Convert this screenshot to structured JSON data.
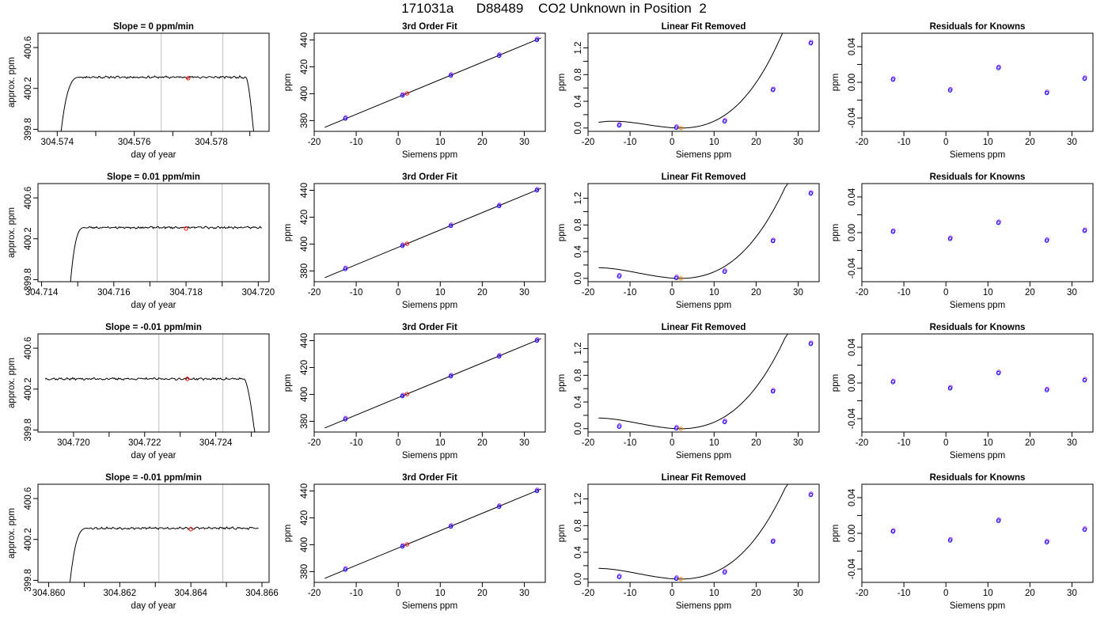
{
  "page_title": "171031a      D88489    CO2 Unknown in Position  2",
  "colors": {
    "trace": "#000000",
    "reference_line": "#bfbfbf",
    "unknown": "#ff0000",
    "known": "#0000ff",
    "known_alt": "#a020f0",
    "unknown_fit": "#ff8c00"
  },
  "chart_data": [
    {
      "row": 1,
      "col": 1,
      "type": "line",
      "title": "Slope =  0  ppm/min",
      "xlabel": "day of year",
      "ylabel": "approx. ppm",
      "xlim": [
        304.5735,
        304.5795
      ],
      "ylim": [
        399.78,
        400.74
      ],
      "xticks": [
        304.574,
        304.575,
        304.576,
        304.577,
        304.578,
        304.579
      ],
      "xtick_labels": [
        "304.574",
        "",
        "304.576",
        "",
        "304.578",
        ""
      ],
      "yticks": [
        399.8,
        400.2,
        400.6
      ],
      "ytick_labels": [
        "399.8",
        "400.2",
        "400.6"
      ],
      "vlines": [
        304.5767,
        304.5783
      ],
      "unknown_point": [
        304.5774,
        400.3
      ],
      "trace": {
        "start": 304.5741,
        "rise_end": 304.5746,
        "plateau_end": 304.5789,
        "end": 304.5791,
        "low": 399.78,
        "level": 400.31,
        "noise": 0.008,
        "seed": 11
      }
    },
    {
      "row": 1,
      "col": 2,
      "type": "scatter",
      "title": "3rd Order Fit",
      "xlabel": "Siemens ppm",
      "ylabel": "ppm",
      "xlim": [
        -20,
        35
      ],
      "ylim": [
        372,
        445
      ],
      "xticks": [
        -20,
        -10,
        0,
        10,
        20,
        30
      ],
      "xtick_labels": [
        "-20",
        "-10",
        "0",
        "10",
        "20",
        "30"
      ],
      "yticks": [
        380,
        400,
        420,
        440
      ],
      "ytick_labels": [
        "380",
        "400",
        "420",
        "440"
      ],
      "curve": {
        "type": "line",
        "x0": -17.5,
        "x1": 34,
        "y0": 375,
        "y1": 441.5
      },
      "known_x": [
        -12.6,
        1,
        12.5,
        24,
        33
      ],
      "known_y": [
        381.5,
        398.7,
        413.5,
        428.3,
        440
      ],
      "unknown_x": 2.1,
      "unknown_y": 400.2
    },
    {
      "row": 1,
      "col": 3,
      "type": "scatter",
      "title": "Linear Fit Removed",
      "xlabel": "Siemens ppm",
      "ylabel": "ppm",
      "xlim": [
        -20,
        35
      ],
      "ylim": [
        -0.05,
        1.42
      ],
      "xticks": [
        -20,
        -10,
        0,
        10,
        20,
        30
      ],
      "xtick_labels": [
        "-20",
        "-10",
        "0",
        "10",
        "20",
        "30"
      ],
      "yticks": [
        0,
        0.2,
        0.4,
        0.6,
        0.8,
        1.0,
        1.2
      ],
      "ytick_labels": [
        "0.0",
        "",
        "0.4",
        "",
        "0.8",
        "",
        "1.2"
      ],
      "curve": {
        "type": "poly",
        "x0": -17.5,
        "x1": 34,
        "x_vertex": 2,
        "y_vertex": 0.0,
        "a": 5e-05,
        "b": 0.0012
      },
      "known_x": [
        -12.6,
        1,
        12.5,
        24,
        33
      ],
      "known_y": [
        0.04,
        0.005,
        0.1,
        0.57,
        1.27
      ],
      "unknown_x": 2.1,
      "unknown_y": 0.0
    },
    {
      "row": 1,
      "col": 4,
      "type": "scatter",
      "title": "Residuals for Knowns",
      "xlabel": "Siemens ppm",
      "ylabel": "ppm",
      "xlim": [
        -20,
        35
      ],
      "ylim": [
        -0.055,
        0.055
      ],
      "xticks": [
        -20,
        -10,
        0,
        10,
        20,
        30
      ],
      "xtick_labels": [
        "-20",
        "-10",
        "0",
        "10",
        "20",
        "30"
      ],
      "yticks": [
        -0.04,
        -0.02,
        0,
        0.02,
        0.04
      ],
      "ytick_labels": [
        "-0.04",
        "",
        "0.00",
        "",
        "0.04"
      ],
      "known_x": [
        -12.6,
        1,
        12.5,
        24,
        33
      ],
      "known_y": [
        0.003,
        -0.009,
        0.016,
        -0.012,
        0.004
      ]
    },
    {
      "row": 2,
      "col": 1,
      "type": "line",
      "title": "Slope =  0.01  ppm/min",
      "xlabel": "day of year",
      "ylabel": "approx. ppm",
      "xlim": [
        304.7139,
        304.7203
      ],
      "ylim": [
        399.78,
        400.74
      ],
      "xticks": [
        304.714,
        304.715,
        304.716,
        304.717,
        304.718,
        304.719,
        304.72
      ],
      "xtick_labels": [
        "304.714",
        "",
        "304.716",
        "",
        "304.718",
        "",
        "304.720"
      ],
      "yticks": [
        399.8,
        400.2,
        400.6
      ],
      "ytick_labels": [
        "399.8",
        "400.2",
        "400.6"
      ],
      "vlines": [
        304.7172,
        304.719
      ],
      "unknown_point": [
        304.718,
        400.3
      ],
      "trace": {
        "start": 304.7148,
        "rise_end": 304.7152,
        "plateau_end": 304.7201,
        "end": 304.7201,
        "low": 399.78,
        "level": 400.31,
        "noise": 0.008,
        "seed": 23
      }
    },
    {
      "row": 2,
      "col": 2,
      "type": "scatter",
      "title": "3rd Order Fit",
      "xlabel": "Siemens ppm",
      "ylabel": "ppm",
      "xlim": [
        -20,
        35
      ],
      "ylim": [
        372,
        445
      ],
      "xticks": [
        -20,
        -10,
        0,
        10,
        20,
        30
      ],
      "xtick_labels": [
        "-20",
        "-10",
        "0",
        "10",
        "20",
        "30"
      ],
      "yticks": [
        380,
        400,
        420,
        440
      ],
      "ytick_labels": [
        "380",
        "400",
        "420",
        "440"
      ],
      "curve": {
        "type": "line",
        "x0": -17.5,
        "x1": 34,
        "y0": 375,
        "y1": 441.5
      },
      "known_x": [
        -12.6,
        1,
        12.5,
        24,
        33
      ],
      "known_y": [
        381.5,
        398.7,
        413.5,
        428.3,
        440
      ],
      "unknown_x": 2.1,
      "unknown_y": 400.2
    },
    {
      "row": 2,
      "col": 3,
      "type": "scatter",
      "title": "Linear Fit Removed",
      "xlabel": "Siemens ppm",
      "ylabel": "ppm",
      "xlim": [
        -20,
        35
      ],
      "ylim": [
        -0.05,
        1.42
      ],
      "xticks": [
        -20,
        -10,
        0,
        10,
        20,
        30
      ],
      "xtick_labels": [
        "-20",
        "-10",
        "0",
        "10",
        "20",
        "30"
      ],
      "yticks": [
        0,
        0.2,
        0.4,
        0.6,
        0.8,
        1.0,
        1.2
      ],
      "ytick_labels": [
        "0.0",
        "",
        "0.4",
        "",
        "0.8",
        "",
        "1.2"
      ],
      "curve": {
        "type": "poly",
        "x0": -17.5,
        "x1": 34,
        "x_vertex": 2,
        "y_vertex": 0.0,
        "a": 4e-05,
        "b": 0.0012
      },
      "known_x": [
        -12.6,
        1,
        12.5,
        24,
        33
      ],
      "known_y": [
        0.03,
        0.005,
        0.1,
        0.56,
        1.27
      ],
      "unknown_x": 2.1,
      "unknown_y": 0.0
    },
    {
      "row": 2,
      "col": 4,
      "type": "scatter",
      "title": "Residuals for Knowns",
      "xlabel": "Siemens ppm",
      "ylabel": "ppm",
      "xlim": [
        -20,
        35
      ],
      "ylim": [
        -0.055,
        0.055
      ],
      "xticks": [
        -20,
        -10,
        0,
        10,
        20,
        30
      ],
      "xtick_labels": [
        "-20",
        "-10",
        "0",
        "10",
        "20",
        "30"
      ],
      "yticks": [
        -0.04,
        -0.02,
        0,
        0.02,
        0.04
      ],
      "ytick_labels": [
        "-0.04",
        "",
        "0.00",
        "",
        "0.04"
      ],
      "known_x": [
        -12.6,
        1,
        12.5,
        24,
        33
      ],
      "known_y": [
        0.001,
        -0.007,
        0.011,
        -0.009,
        0.002
      ]
    },
    {
      "row": 3,
      "col": 1,
      "type": "line",
      "title": "Slope =  -0.01  ppm/min",
      "xlabel": "day of year",
      "ylabel": "approx. ppm",
      "xlim": [
        304.719,
        304.7255
      ],
      "ylim": [
        399.78,
        400.74
      ],
      "xticks": [
        304.72,
        304.721,
        304.722,
        304.723,
        304.724,
        304.725
      ],
      "xtick_labels": [
        "304.720",
        "",
        "304.722",
        "",
        "304.724",
        ""
      ],
      "yticks": [
        399.8,
        400.2,
        400.6
      ],
      "ytick_labels": [
        "399.8",
        "400.2",
        "400.6"
      ],
      "vlines": [
        304.7224,
        304.7242
      ],
      "unknown_point": [
        304.7232,
        400.3
      ],
      "trace": {
        "start": 304.7192,
        "rise_end": 304.7192,
        "plateau_end": 304.7248,
        "end": 304.7251,
        "low": 399.78,
        "level": 400.3,
        "noise": 0.008,
        "seed": 37
      }
    },
    {
      "row": 3,
      "col": 2,
      "type": "scatter",
      "title": "3rd Order Fit",
      "xlabel": "Siemens ppm",
      "ylabel": "ppm",
      "xlim": [
        -20,
        35
      ],
      "ylim": [
        372,
        445
      ],
      "xticks": [
        -20,
        -10,
        0,
        10,
        20,
        30
      ],
      "xtick_labels": [
        "-20",
        "-10",
        "0",
        "10",
        "20",
        "30"
      ],
      "yticks": [
        380,
        400,
        420,
        440
      ],
      "ytick_labels": [
        "380",
        "400",
        "420",
        "440"
      ],
      "curve": {
        "type": "line",
        "x0": -17.5,
        "x1": 34,
        "y0": 375,
        "y1": 441.5
      },
      "known_x": [
        -12.6,
        1,
        12.5,
        24,
        33
      ],
      "known_y": [
        381.5,
        398.7,
        413.5,
        428.3,
        440
      ],
      "unknown_x": 2.1,
      "unknown_y": 400.2
    },
    {
      "row": 3,
      "col": 3,
      "type": "scatter",
      "title": "Linear Fit Removed",
      "xlabel": "Siemens ppm",
      "ylabel": "ppm",
      "xlim": [
        -20,
        35
      ],
      "ylim": [
        -0.05,
        1.42
      ],
      "xticks": [
        -20,
        -10,
        0,
        10,
        20,
        30
      ],
      "xtick_labels": [
        "-20",
        "-10",
        "0",
        "10",
        "20",
        "30"
      ],
      "yticks": [
        0,
        0.2,
        0.4,
        0.6,
        0.8,
        1.0,
        1.2
      ],
      "ytick_labels": [
        "0.0",
        "",
        "0.4",
        "",
        "0.8",
        "",
        "1.2"
      ],
      "curve": {
        "type": "poly",
        "x0": -17.5,
        "x1": 34,
        "x_vertex": 2,
        "y_vertex": 0.0,
        "a": 4e-05,
        "b": 0.0012
      },
      "known_x": [
        -12.6,
        1,
        12.5,
        24,
        33
      ],
      "known_y": [
        0.03,
        0.005,
        0.1,
        0.56,
        1.27
      ],
      "unknown_x": 2.1,
      "unknown_y": 0.0
    },
    {
      "row": 3,
      "col": 4,
      "type": "scatter",
      "title": "Residuals for Knowns",
      "xlabel": "Siemens ppm",
      "ylabel": "ppm",
      "xlim": [
        -20,
        35
      ],
      "ylim": [
        -0.055,
        0.055
      ],
      "xticks": [
        -20,
        -10,
        0,
        10,
        20,
        30
      ],
      "xtick_labels": [
        "-20",
        "-10",
        "0",
        "10",
        "20",
        "30"
      ],
      "yticks": [
        -0.04,
        -0.02,
        0,
        0.02,
        0.04
      ],
      "ytick_labels": [
        "-0.04",
        "",
        "0.00",
        "",
        "0.04"
      ],
      "known_x": [
        -12.6,
        1,
        12.5,
        24,
        33
      ],
      "known_y": [
        0.001,
        -0.006,
        0.011,
        -0.008,
        0.003
      ]
    },
    {
      "row": 4,
      "col": 1,
      "type": "line",
      "title": "Slope =  -0.01  ppm/min",
      "xlabel": "day of year",
      "ylabel": "approx. ppm",
      "xlim": [
        304.8597,
        304.8662
      ],
      "ylim": [
        399.78,
        400.74
      ],
      "xticks": [
        304.86,
        304.861,
        304.862,
        304.863,
        304.864,
        304.865,
        304.866
      ],
      "xtick_labels": [
        "304.860",
        "",
        "304.862",
        "",
        "304.864",
        "",
        "304.866"
      ],
      "yticks": [
        399.8,
        400.2,
        400.6
      ],
      "ytick_labels": [
        "399.8",
        "400.2",
        "400.6"
      ],
      "vlines": [
        304.8631,
        304.8649
      ],
      "unknown_point": [
        304.864,
        400.3
      ],
      "trace": {
        "start": 304.8606,
        "rise_end": 304.8611,
        "plateau_end": 304.8659,
        "end": 304.8659,
        "low": 399.78,
        "level": 400.31,
        "noise": 0.008,
        "seed": 53
      }
    },
    {
      "row": 4,
      "col": 2,
      "type": "scatter",
      "title": "3rd Order Fit",
      "xlabel": "Siemens ppm",
      "ylabel": "ppm",
      "xlim": [
        -20,
        35
      ],
      "ylim": [
        372,
        445
      ],
      "xticks": [
        -20,
        -10,
        0,
        10,
        20,
        30
      ],
      "xtick_labels": [
        "-20",
        "-10",
        "0",
        "10",
        "20",
        "30"
      ],
      "yticks": [
        380,
        400,
        420,
        440
      ],
      "ytick_labels": [
        "380",
        "400",
        "420",
        "440"
      ],
      "curve": {
        "type": "line",
        "x0": -17.5,
        "x1": 34,
        "y0": 375,
        "y1": 441.5
      },
      "known_x": [
        -12.6,
        1,
        12.5,
        24,
        33
      ],
      "known_y": [
        381.5,
        398.7,
        413.5,
        428.3,
        440
      ],
      "unknown_x": 2.1,
      "unknown_y": 400.2
    },
    {
      "row": 4,
      "col": 3,
      "type": "scatter",
      "title": "Linear Fit Removed",
      "xlabel": "Siemens ppm",
      "ylabel": "ppm",
      "xlim": [
        -20,
        35
      ],
      "ylim": [
        -0.05,
        1.42
      ],
      "xticks": [
        -20,
        -10,
        0,
        10,
        20,
        30
      ],
      "xtick_labels": [
        "-20",
        "-10",
        "0",
        "10",
        "20",
        "30"
      ],
      "yticks": [
        0,
        0.2,
        0.4,
        0.6,
        0.8,
        1.0,
        1.2
      ],
      "ytick_labels": [
        "0.0",
        "",
        "0.4",
        "",
        "0.8",
        "",
        "1.2"
      ],
      "curve": {
        "type": "poly",
        "x0": -17.5,
        "x1": 34,
        "x_vertex": 2,
        "y_vertex": 0.0,
        "a": 4e-05,
        "b": 0.0012
      },
      "known_x": [
        -12.6,
        1,
        12.5,
        24,
        33
      ],
      "known_y": [
        0.03,
        0.005,
        0.1,
        0.56,
        1.26
      ],
      "unknown_x": 2.1,
      "unknown_y": 0.0
    },
    {
      "row": 4,
      "col": 4,
      "type": "scatter",
      "title": "Residuals for Knowns",
      "xlabel": "Siemens ppm",
      "ylabel": "ppm",
      "xlim": [
        -20,
        35
      ],
      "ylim": [
        -0.055,
        0.055
      ],
      "xticks": [
        -20,
        -10,
        0,
        10,
        20,
        30
      ],
      "xtick_labels": [
        "-20",
        "-10",
        "0",
        "10",
        "20",
        "30"
      ],
      "yticks": [
        -0.04,
        -0.02,
        0,
        0.02,
        0.04
      ],
      "ytick_labels": [
        "-0.04",
        "",
        "0.00",
        "",
        "0.04"
      ],
      "known_x": [
        -12.6,
        1,
        12.5,
        24,
        33
      ],
      "known_y": [
        0.002,
        -0.008,
        0.014,
        -0.01,
        0.004
      ]
    }
  ]
}
